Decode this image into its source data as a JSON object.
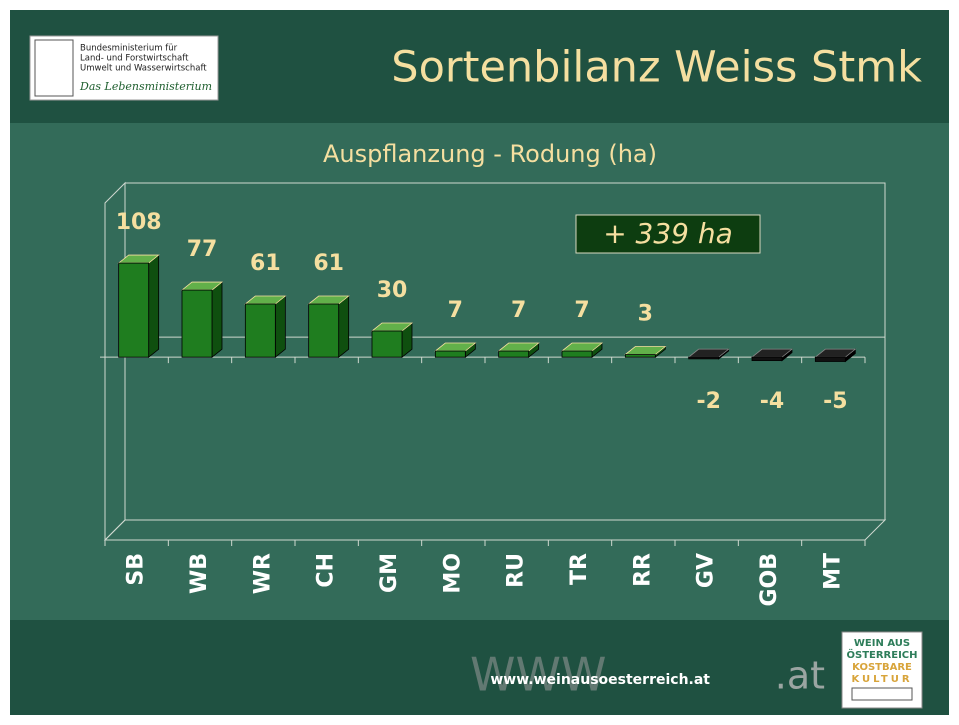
{
  "header": {
    "title": "Sortenbilanz Weiss Stmk",
    "logo_lines": [
      "Bundesministerium für",
      "Land- und Forstwirtschaft",
      "Umwelt und Wasserwirtschaft"
    ],
    "logo_tagline": "Das Lebensministerium"
  },
  "chart_data": {
    "type": "bar",
    "title": "Auspflanzung - Rodung (ha)",
    "categories": [
      "SB",
      "WB",
      "WR",
      "CH",
      "GM",
      "MO",
      "RU",
      "TR",
      "RR",
      "GV",
      "GOB",
      "MT"
    ],
    "values": [
      108,
      77,
      61,
      61,
      30,
      7,
      7,
      7,
      3,
      -2,
      -4,
      -5
    ],
    "color": "#1f7d1f",
    "negative_color": "#111111",
    "ylim": [
      -210,
      177
    ],
    "annotation": "+ 339 ha"
  },
  "footer": {
    "url": "www.weinausoesterreich.at",
    "logo_lines": [
      "WEIN AUS",
      "ÖSTERREICH",
      "KOSTBARE",
      "KULTUR"
    ]
  }
}
